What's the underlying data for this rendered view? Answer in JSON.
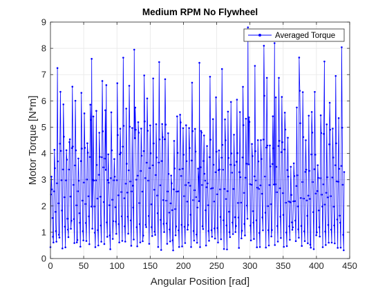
{
  "chart_data": {
    "type": "line",
    "title": "Medium RPM No Flywheel",
    "xlabel": "Angular Position [rad]",
    "ylabel": "Motor Torque [N*m]",
    "xlim": [
      0,
      450
    ],
    "ylim": [
      0,
      9
    ],
    "xticks": [
      0,
      50,
      100,
      150,
      200,
      250,
      300,
      350,
      400,
      450
    ],
    "yticks": [
      0,
      1,
      2,
      3,
      4,
      5,
      6,
      7,
      8,
      9
    ],
    "grid": true,
    "legend_position": "top-right",
    "series": [
      {
        "name": "Averaged Torque",
        "color": "#0000ff",
        "marker": "dot",
        "x_start": 0,
        "x_step": 0.75,
        "points_per_cycle": 6,
        "cycle_troughs": [
          0.4,
          0.7,
          0.5,
          0.9,
          0.6,
          0.5,
          0.8,
          1.2,
          0.3,
          0.7,
          0.5,
          0.6,
          1.0,
          0.4,
          0.8,
          0.5,
          0.6,
          0.9,
          0.7,
          0.5,
          0.4,
          1.1,
          0.6,
          0.8,
          0.5,
          0.7,
          0.9,
          0.6,
          0.5,
          0.8,
          0.4,
          0.7,
          1.0,
          0.6,
          0.5,
          0.8,
          0.6,
          0.7,
          0.9,
          0.5
        ],
        "cycle_peaks": [
          3.6,
          4.5,
          5.2,
          7.3,
          6.0,
          4.8,
          5.5,
          6.6,
          5.9,
          4.2,
          6.2,
          5.5,
          4.9,
          6.6,
          5.1,
          6.0,
          5.4,
          7.6,
          6.1,
          5.0,
          6.6,
          4.8,
          6.4,
          5.8,
          7.1,
          5.5,
          6.9,
          5.2,
          7.2,
          6.0,
          5.6,
          8.0,
          6.3,
          5.4,
          6.4,
          5.8,
          7.0,
          5.9,
          6.6,
          5.3
        ],
        "highlight_peaks": [
          {
            "x": 10.5,
            "y": 7.25
          },
          {
            "x": 62.0,
            "y": 7.6
          },
          {
            "x": 84.0,
            "y": 6.6
          },
          {
            "x": 126.0,
            "y": 7.95
          },
          {
            "x": 224.0,
            "y": 7.45
          },
          {
            "x": 297.0,
            "y": 8.8
          },
          {
            "x": 337.0,
            "y": 8.2
          },
          {
            "x": 374.0,
            "y": 7.65
          },
          {
            "x": 412.0,
            "y": 7.5
          },
          {
            "x": 429.0,
            "y": 6.95
          }
        ],
        "count": 590
      }
    ]
  }
}
